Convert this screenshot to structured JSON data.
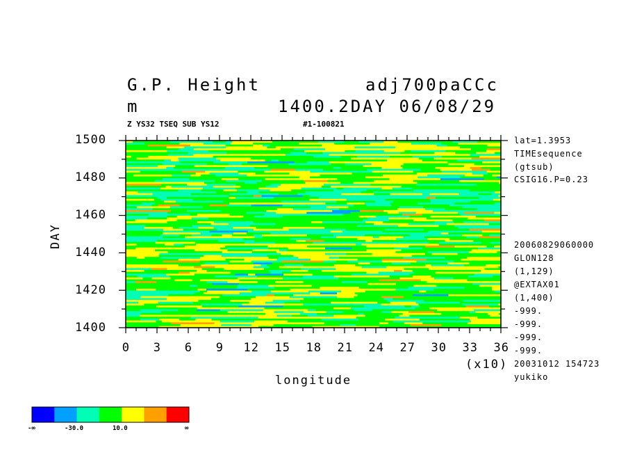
{
  "header": {
    "title_left": "G.P. Height",
    "title_right": "adj700paCCc",
    "units": "m",
    "time_info": "1400.2DAY 06/08/29",
    "subtitle_left": "Z YS32 TSEQ SUB YS12",
    "subtitle_right": "#1-100821"
  },
  "right_info": {
    "top_lines": [
      "lat=1.3953",
      "TIMEsequence",
      "(gtsub)",
      "CSIG16.P=0.23"
    ],
    "bottom_lines": [
      "20060829060000",
      "GLON128",
      "(1,129)",
      "@EXTAX01",
      "(1,400)",
      "-999.",
      "-999.",
      "-999.",
      "-999.",
      "20031012 154723",
      "yukiko"
    ]
  },
  "colorbar": {
    "colors": [
      "#0000ff",
      "#00a0ff",
      "#00ffb4",
      "#00ff00",
      "#ffff00",
      "#ffa000",
      "#ff0000"
    ],
    "labels": [
      "-∞",
      "-30.0",
      "10.0",
      "∞"
    ]
  },
  "chart_data": {
    "type": "heatmap",
    "title": "G.P. Height",
    "xlabel": "longitude",
    "ylabel": "DAY",
    "x_multiplier_label": "(x10)",
    "xlim": [
      0,
      36
    ],
    "ylim": [
      1400,
      1500
    ],
    "x_ticks": [
      "0",
      "3",
      "6",
      "9",
      "12",
      "15",
      "18",
      "21",
      "24",
      "27",
      "30",
      "33",
      "36"
    ],
    "y_ticks": [
      "1400",
      "1420",
      "1440",
      "1460",
      "1480",
      "1500"
    ],
    "color_levels": [
      "-inf",
      "-30.0",
      "10.0",
      "inf"
    ],
    "field_description_levels": [
      {
        "day_range": [
          1400,
          1405
        ],
        "dominant": "yellow/green"
      },
      {
        "day_range": [
          1405,
          1430
        ],
        "dominant": "green with yellow patches"
      },
      {
        "day_range": [
          1430,
          1445
        ],
        "dominant": "yellow/green mixed"
      },
      {
        "day_range": [
          1445,
          1475
        ],
        "dominant": "green/cyan"
      },
      {
        "day_range": [
          1475,
          1500
        ],
        "dominant": "yellow/green mixed"
      }
    ]
  }
}
